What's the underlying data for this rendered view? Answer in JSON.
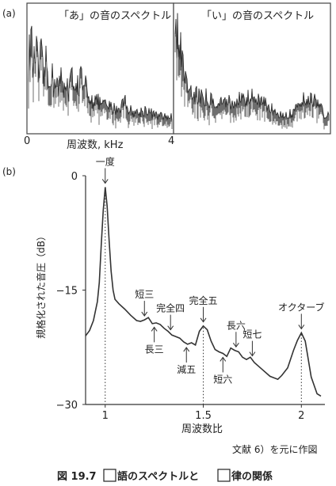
{
  "panel_a": {
    "label": "(a)",
    "x_tick_start": "0",
    "x_tick_end": "4",
    "x_label": "周波数, kHz",
    "left_title": "「あ」の音のスペクトル",
    "right_title": "「い」の音のスペクトル"
  },
  "panel_b": {
    "label": "(b)"
  },
  "source_note": "文献 6）を元に作図",
  "caption": {
    "prefix": "図 19.7",
    "mid": "語のスペクトルと",
    "suffix": "律の関係"
  },
  "chart_data": [
    {
      "type": "area",
      "title": "「あ」の音のスペクトル",
      "xlabel": "周波数, kHz",
      "xlim": [
        0,
        4
      ],
      "x_ticks": [
        "0",
        "4"
      ],
      "grid": false
    },
    {
      "type": "area",
      "title": "「い」の音のスペクトル",
      "xlabel": "周波数, kHz",
      "xlim": [
        0,
        4
      ],
      "x_ticks": [
        "4"
      ],
      "grid": false
    },
    {
      "type": "line",
      "xlabel": "周波数比",
      "ylabel": "規格化された音圧（dB）",
      "xlim": [
        0.9,
        2.12
      ],
      "ylim": [
        -30,
        0
      ],
      "x_ticks": [
        {
          "value": 1,
          "label": "1"
        },
        {
          "value": 1.5,
          "label": "1.5"
        },
        {
          "value": 2,
          "label": "2"
        }
      ],
      "y_ticks": [
        {
          "value": 0,
          "label": "0"
        },
        {
          "value": -15,
          "label": "−15"
        },
        {
          "value": -30,
          "label": "−30"
        }
      ],
      "series": [
        {
          "x": [
            0.9,
            0.92,
            0.94,
            0.96,
            0.97,
            0.98,
            0.99,
            1.0,
            1.01,
            1.02,
            1.03,
            1.04,
            1.05,
            1.07,
            1.1,
            1.13,
            1.16,
            1.18,
            1.2,
            1.22,
            1.24,
            1.26,
            1.28,
            1.3,
            1.32,
            1.34,
            1.36,
            1.38,
            1.4,
            1.42,
            1.44,
            1.46,
            1.48,
            1.5,
            1.52,
            1.54,
            1.56,
            1.58,
            1.6,
            1.62,
            1.64,
            1.66,
            1.68,
            1.7,
            1.72,
            1.74,
            1.76,
            1.8,
            1.84,
            1.88,
            1.9,
            1.93,
            1.96,
            1.98,
            2.0,
            2.02,
            2.05,
            2.08,
            2.1
          ],
          "y": [
            -21,
            -20.3,
            -19,
            -16.5,
            -14,
            -9,
            -4.5,
            -1.5,
            -4,
            -8.5,
            -12.5,
            -15,
            -16.2,
            -16.8,
            -17.5,
            -18.3,
            -19,
            -19.1,
            -18.9,
            -18.6,
            -19.4,
            -19.3,
            -19.5,
            -20,
            -20.4,
            -20.9,
            -21.1,
            -21.3,
            -21.8,
            -22.1,
            -21.9,
            -22.2,
            -20.4,
            -19.7,
            -20.2,
            -21.7,
            -22.8,
            -23.1,
            -23.3,
            -23.7,
            -22.6,
            -22.9,
            -23.1,
            -23.8,
            -24.1,
            -23.8,
            -24.5,
            -25.4,
            -26.3,
            -26.7,
            -26.2,
            -25.2,
            -22.9,
            -21.6,
            -20.6,
            -21.7,
            -26.4,
            -28.6,
            -28.9
          ]
        }
      ],
      "annotations": [
        {
          "label": "一度",
          "x": 1.0,
          "y": -1.5,
          "arrow": "down"
        },
        {
          "label": "短三",
          "x": 1.2,
          "y": -18.9,
          "arrow": "down"
        },
        {
          "label": "長三",
          "x": 1.25,
          "y": -19.4,
          "arrow": "up"
        },
        {
          "label": "完全四",
          "x": 1.333,
          "y": -20.5,
          "arrow": "down"
        },
        {
          "label": "減五",
          "x": 1.414,
          "y": -21.9,
          "arrow": "up"
        },
        {
          "label": "完全五",
          "x": 1.5,
          "y": -19.7,
          "arrow": "down"
        },
        {
          "label": "短六",
          "x": 1.6,
          "y": -23.3,
          "arrow": "up"
        },
        {
          "label": "長六",
          "x": 1.667,
          "y": -22.8,
          "arrow": "down"
        },
        {
          "label": "短七",
          "x": 1.75,
          "y": -24.0,
          "arrow": "down"
        },
        {
          "label": "オクターブ",
          "x": 2.0,
          "y": -20.6,
          "arrow": "down"
        }
      ],
      "dotted_markers_at": [
        1,
        1.5,
        2
      ]
    }
  ]
}
